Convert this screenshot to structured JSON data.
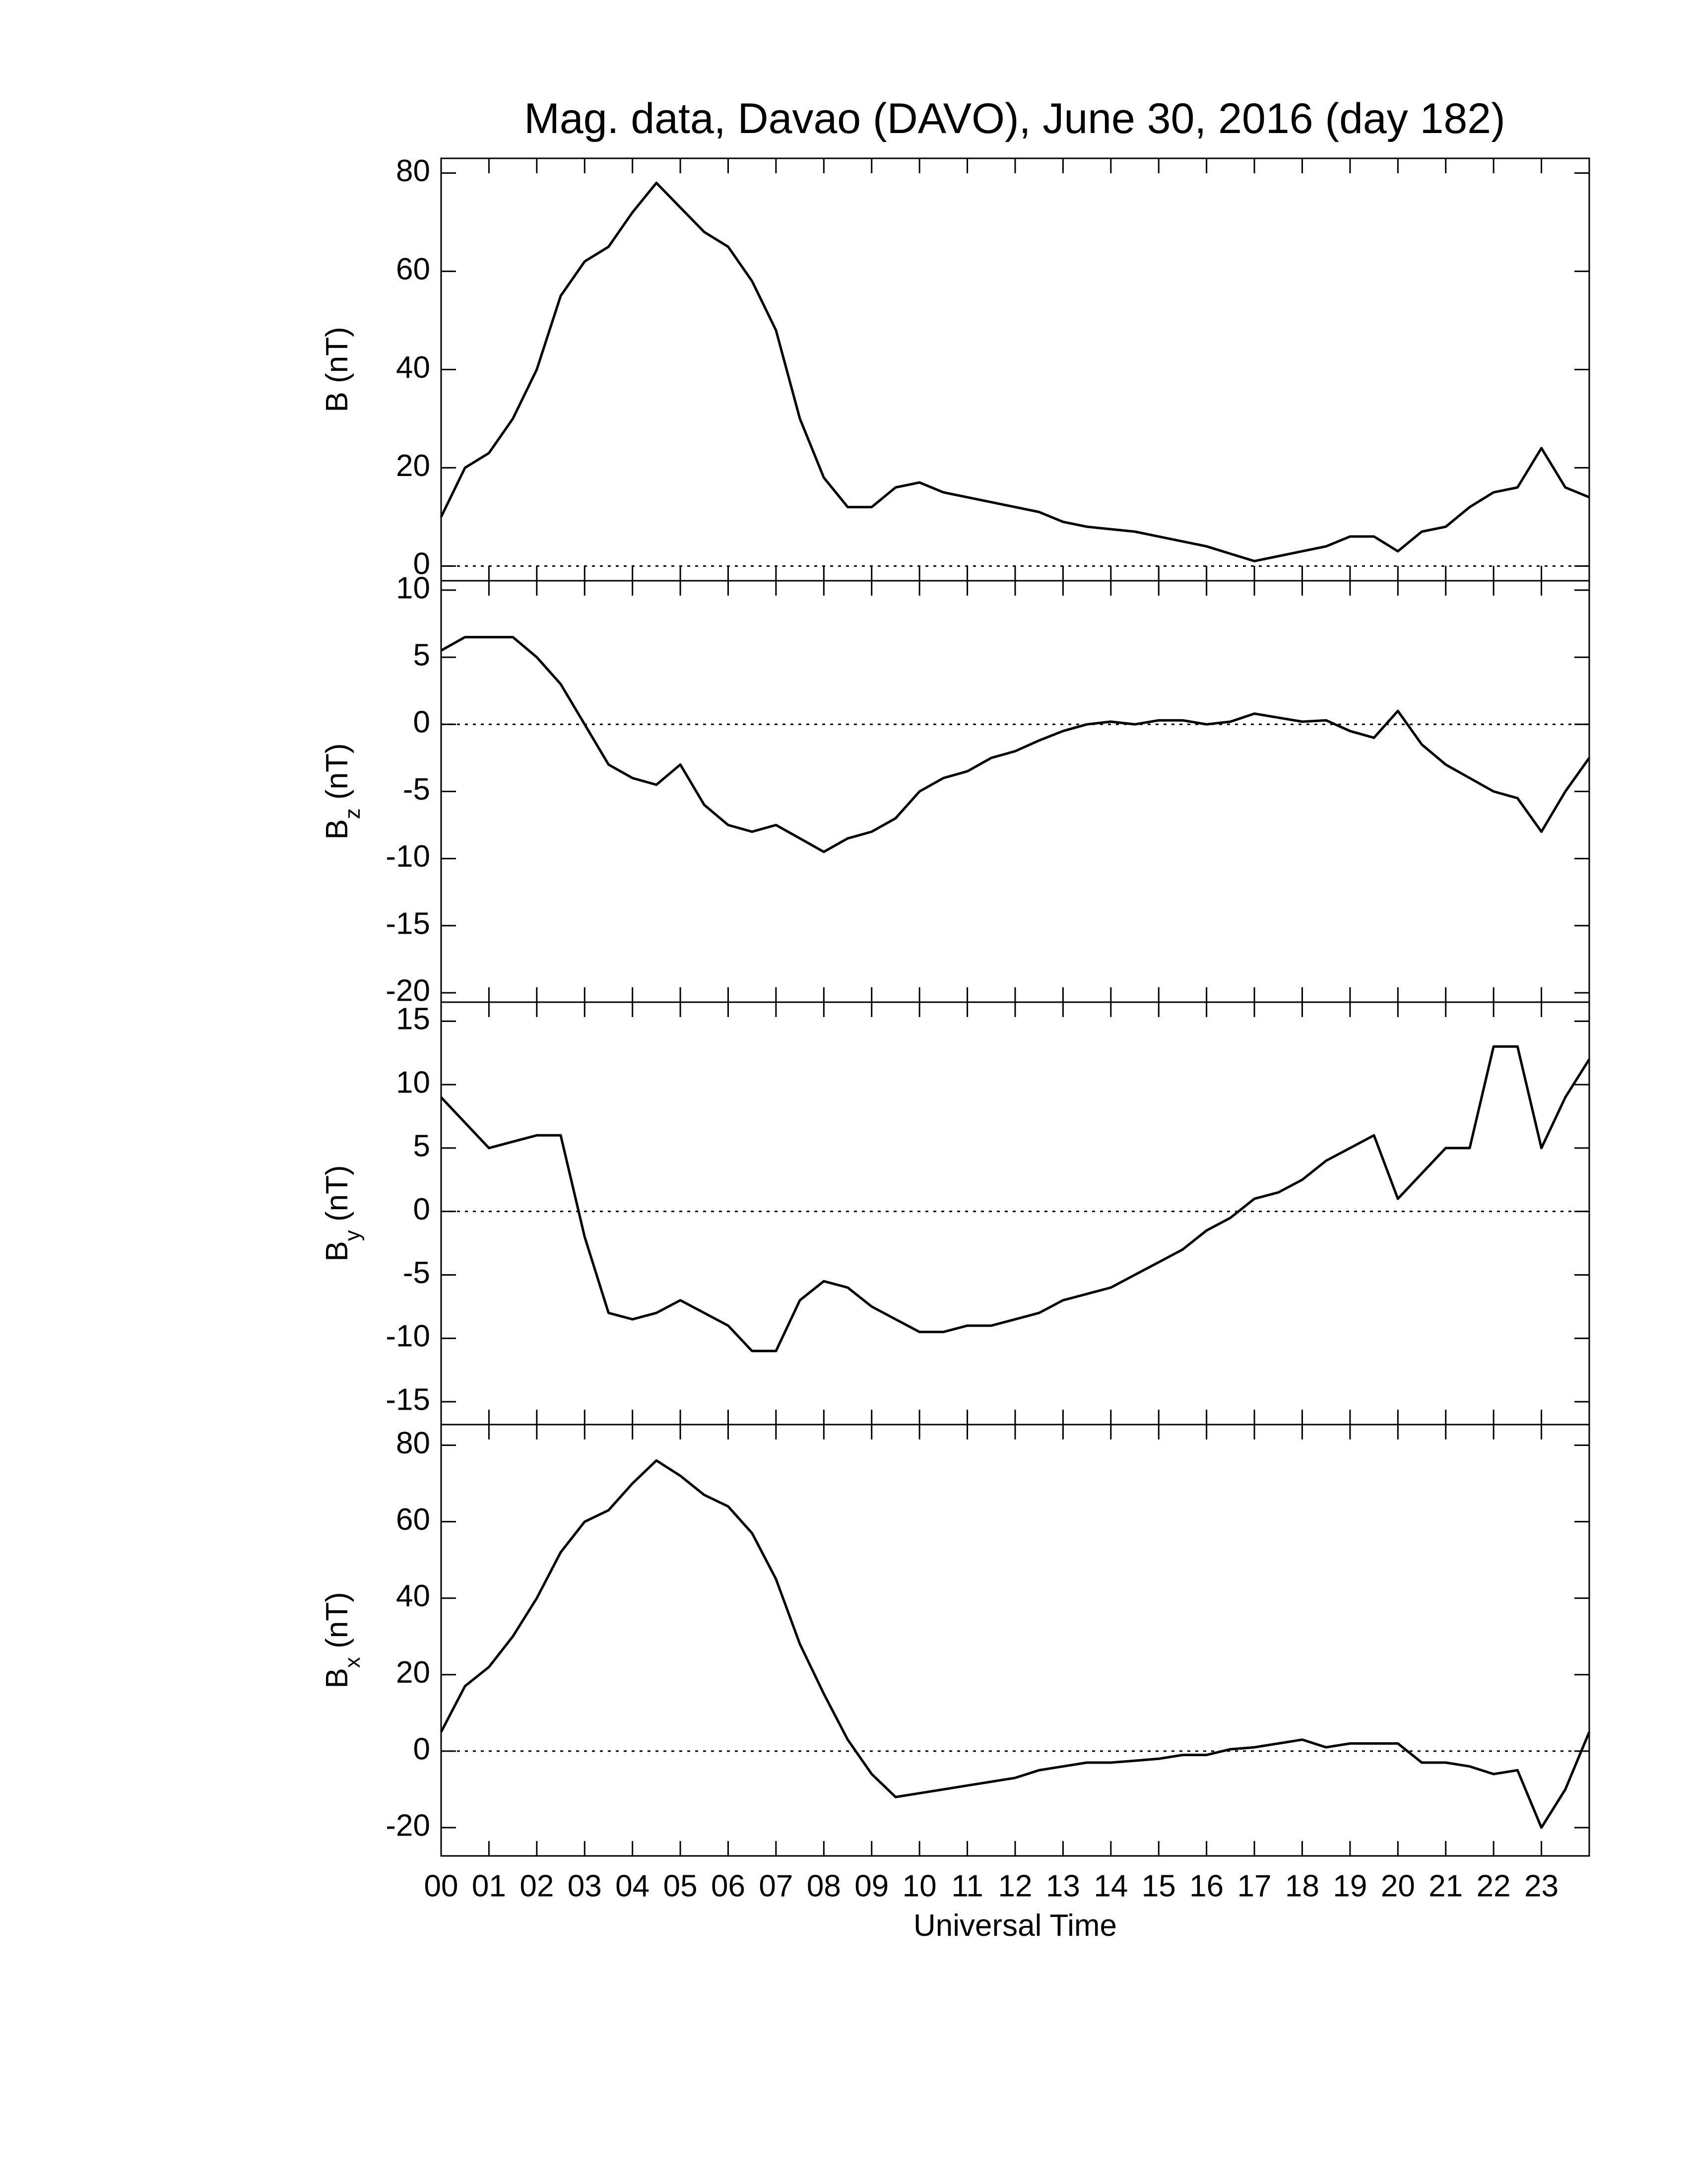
{
  "chart_data": [
    {
      "type": "line",
      "title": "Mag. data, Davao (DAVO), June 30, 2016 (day 182)",
      "ylabel": "B (nT)",
      "color": "#000000",
      "hline": 0,
      "show_xtick_labels": false,
      "x": [
        0,
        0.5,
        1,
        1.5,
        2,
        2.5,
        3,
        3.5,
        4,
        4.5,
        5,
        5.5,
        6,
        6.5,
        7,
        7.5,
        8,
        8.5,
        9,
        9.5,
        10,
        10.5,
        11,
        11.5,
        12,
        12.5,
        13,
        13.5,
        14,
        14.5,
        15,
        15.5,
        16,
        16.5,
        17,
        17.5,
        18,
        18.5,
        19,
        19.5,
        20,
        20.5,
        21,
        21.5,
        22,
        22.5,
        23,
        23.5,
        24
      ],
      "values": [
        10,
        20,
        23,
        30,
        40,
        55,
        62,
        65,
        72,
        78,
        73,
        68,
        65,
        58,
        48,
        30,
        18,
        12,
        12,
        16,
        17,
        15,
        14,
        13,
        12,
        11,
        9,
        8,
        7.5,
        7,
        6,
        5,
        4,
        2.5,
        1,
        2,
        3,
        4,
        6,
        6,
        3,
        7,
        8,
        12,
        15,
        16,
        24,
        16,
        14
      ],
      "xlim": [
        0,
        24
      ],
      "xticks": [
        {
          "value": 0,
          "label": "00"
        },
        {
          "value": 1,
          "label": "01"
        },
        {
          "value": 2,
          "label": "02"
        },
        {
          "value": 3,
          "label": "03"
        },
        {
          "value": 4,
          "label": "04"
        },
        {
          "value": 5,
          "label": "05"
        },
        {
          "value": 6,
          "label": "06"
        },
        {
          "value": 7,
          "label": "07"
        },
        {
          "value": 8,
          "label": "08"
        },
        {
          "value": 9,
          "label": "09"
        },
        10,
        11,
        12,
        13,
        14,
        15,
        16,
        17,
        18,
        19,
        20,
        21,
        22,
        23
      ],
      "ylim": [
        -3,
        83
      ],
      "yticks": [
        0,
        20,
        40,
        60,
        80
      ]
    },
    {
      "type": "line",
      "ylabel": {
        "base": "B",
        "sub": "z",
        "unit": " (nT)"
      },
      "color": "#000000",
      "hline": 0,
      "show_xtick_labels": false,
      "x": [
        0,
        0.5,
        1,
        1.5,
        2,
        2.5,
        3,
        3.5,
        4,
        4.5,
        5,
        5.5,
        6,
        6.5,
        7,
        7.5,
        8,
        8.5,
        9,
        9.5,
        10,
        10.5,
        11,
        11.5,
        12,
        12.5,
        13,
        13.5,
        14,
        14.5,
        15,
        15.5,
        16,
        16.5,
        17,
        17.5,
        18,
        18.5,
        19,
        19.5,
        20,
        20.5,
        21,
        21.5,
        22,
        22.5,
        23,
        23.5,
        24
      ],
      "values": [
        5.5,
        6.5,
        6.5,
        6.5,
        5,
        3,
        0,
        -3,
        -4,
        -4.5,
        -3,
        -6,
        -7.5,
        -8,
        -7.5,
        -8.5,
        -9.5,
        -8.5,
        -8,
        -7,
        -5,
        -4,
        -3.5,
        -2.5,
        -2,
        -1.2,
        -0.5,
        0,
        0.2,
        0,
        0.3,
        0.3,
        0,
        0.2,
        0.8,
        0.5,
        0.2,
        0.3,
        -0.5,
        -1,
        1,
        -1.5,
        -3,
        -4,
        -5,
        -5.5,
        -8,
        -5,
        -2.5
      ],
      "xlim": [
        0,
        24
      ],
      "xticks": [
        {
          "value": 0,
          "label": "00"
        },
        {
          "value": 1,
          "label": "01"
        },
        {
          "value": 2,
          "label": "02"
        },
        {
          "value": 3,
          "label": "03"
        },
        {
          "value": 4,
          "label": "04"
        },
        {
          "value": 5,
          "label": "05"
        },
        {
          "value": 6,
          "label": "06"
        },
        {
          "value": 7,
          "label": "07"
        },
        {
          "value": 8,
          "label": "08"
        },
        {
          "value": 9,
          "label": "09"
        },
        10,
        11,
        12,
        13,
        14,
        15,
        16,
        17,
        18,
        19,
        20,
        21,
        22,
        23
      ],
      "ylim": [
        -20.7,
        10.7
      ],
      "yticks": [
        -20,
        -15,
        -10,
        -5,
        0,
        5,
        10
      ]
    },
    {
      "type": "line",
      "ylabel": {
        "base": "B",
        "sub": "y",
        "unit": " (nT)"
      },
      "color": "#000000",
      "hline": 0,
      "show_xtick_labels": false,
      "x": [
        0,
        0.5,
        1,
        1.5,
        2,
        2.5,
        3,
        3.5,
        4,
        4.5,
        5,
        5.5,
        6,
        6.5,
        7,
        7.5,
        8,
        8.5,
        9,
        9.5,
        10,
        10.5,
        11,
        11.5,
        12,
        12.5,
        13,
        13.5,
        14,
        14.5,
        15,
        15.5,
        16,
        16.5,
        17,
        17.5,
        18,
        18.5,
        19,
        19.5,
        20,
        20.5,
        21,
        21.5,
        22,
        22.5,
        23,
        23.5,
        24
      ],
      "values": [
        9,
        7,
        5,
        5.5,
        6,
        6,
        -2,
        -8,
        -8.5,
        -8,
        -7,
        -8,
        -9,
        -11,
        -11,
        -7,
        -5.5,
        -6,
        -7.5,
        -8.5,
        -9.5,
        -9.5,
        -9,
        -9,
        -8.5,
        -8,
        -7,
        -6.5,
        -6,
        -5,
        -4,
        -3,
        -1.5,
        -0.5,
        1,
        1.5,
        2.5,
        4,
        5,
        6,
        1,
        3,
        5,
        5,
        13,
        13,
        5,
        9,
        12
      ],
      "xlim": [
        0,
        24
      ],
      "xticks": [
        {
          "value": 0,
          "label": "00"
        },
        {
          "value": 1,
          "label": "01"
        },
        {
          "value": 2,
          "label": "02"
        },
        {
          "value": 3,
          "label": "03"
        },
        {
          "value": 4,
          "label": "04"
        },
        {
          "value": 5,
          "label": "05"
        },
        {
          "value": 6,
          "label": "06"
        },
        {
          "value": 7,
          "label": "07"
        },
        {
          "value": 8,
          "label": "08"
        },
        {
          "value": 9,
          "label": "09"
        },
        10,
        11,
        12,
        13,
        14,
        15,
        16,
        17,
        18,
        19,
        20,
        21,
        22,
        23
      ],
      "ylim": [
        -16.8,
        16.5
      ],
      "yticks": [
        -15,
        -10,
        -5,
        0,
        5,
        10,
        15
      ]
    },
    {
      "type": "line",
      "ylabel": {
        "base": "B",
        "sub": "x",
        "unit": " (nT)"
      },
      "xlabel": "Universal Time",
      "color": "#000000",
      "hline": 0,
      "show_xtick_labels": true,
      "x": [
        0,
        0.5,
        1,
        1.5,
        2,
        2.5,
        3,
        3.5,
        4,
        4.5,
        5,
        5.5,
        6,
        6.5,
        7,
        7.5,
        8,
        8.5,
        9,
        9.5,
        10,
        10.5,
        11,
        11.5,
        12,
        12.5,
        13,
        13.5,
        14,
        14.5,
        15,
        15.5,
        16,
        16.5,
        17,
        17.5,
        18,
        18.5,
        19,
        19.5,
        20,
        20.5,
        21,
        21.5,
        22,
        22.5,
        23,
        23.5,
        24
      ],
      "values": [
        5,
        17,
        22,
        30,
        40,
        52,
        60,
        63,
        70,
        76,
        72,
        67,
        64,
        57,
        45,
        28,
        15,
        3,
        -6,
        -12,
        -11,
        -10,
        -9,
        -8,
        -7,
        -5,
        -4,
        -3,
        -3,
        -2.5,
        -2,
        -1,
        -1,
        0.5,
        1,
        2,
        3,
        1,
        2,
        2,
        2,
        -3,
        -3,
        -4,
        -6,
        -5,
        -20,
        -10,
        5
      ],
      "xlim": [
        0,
        24
      ],
      "xticks": [
        {
          "value": 0,
          "label": "00"
        },
        {
          "value": 1,
          "label": "01"
        },
        {
          "value": 2,
          "label": "02"
        },
        {
          "value": 3,
          "label": "03"
        },
        {
          "value": 4,
          "label": "04"
        },
        {
          "value": 5,
          "label": "05"
        },
        {
          "value": 6,
          "label": "06"
        },
        {
          "value": 7,
          "label": "07"
        },
        {
          "value": 8,
          "label": "08"
        },
        {
          "value": 9,
          "label": "09"
        },
        10,
        11,
        12,
        13,
        14,
        15,
        16,
        17,
        18,
        19,
        20,
        21,
        22,
        23
      ],
      "ylim": [
        -27.4,
        85.4
      ],
      "yticks": [
        -20,
        0,
        20,
        40,
        60,
        80
      ]
    }
  ]
}
